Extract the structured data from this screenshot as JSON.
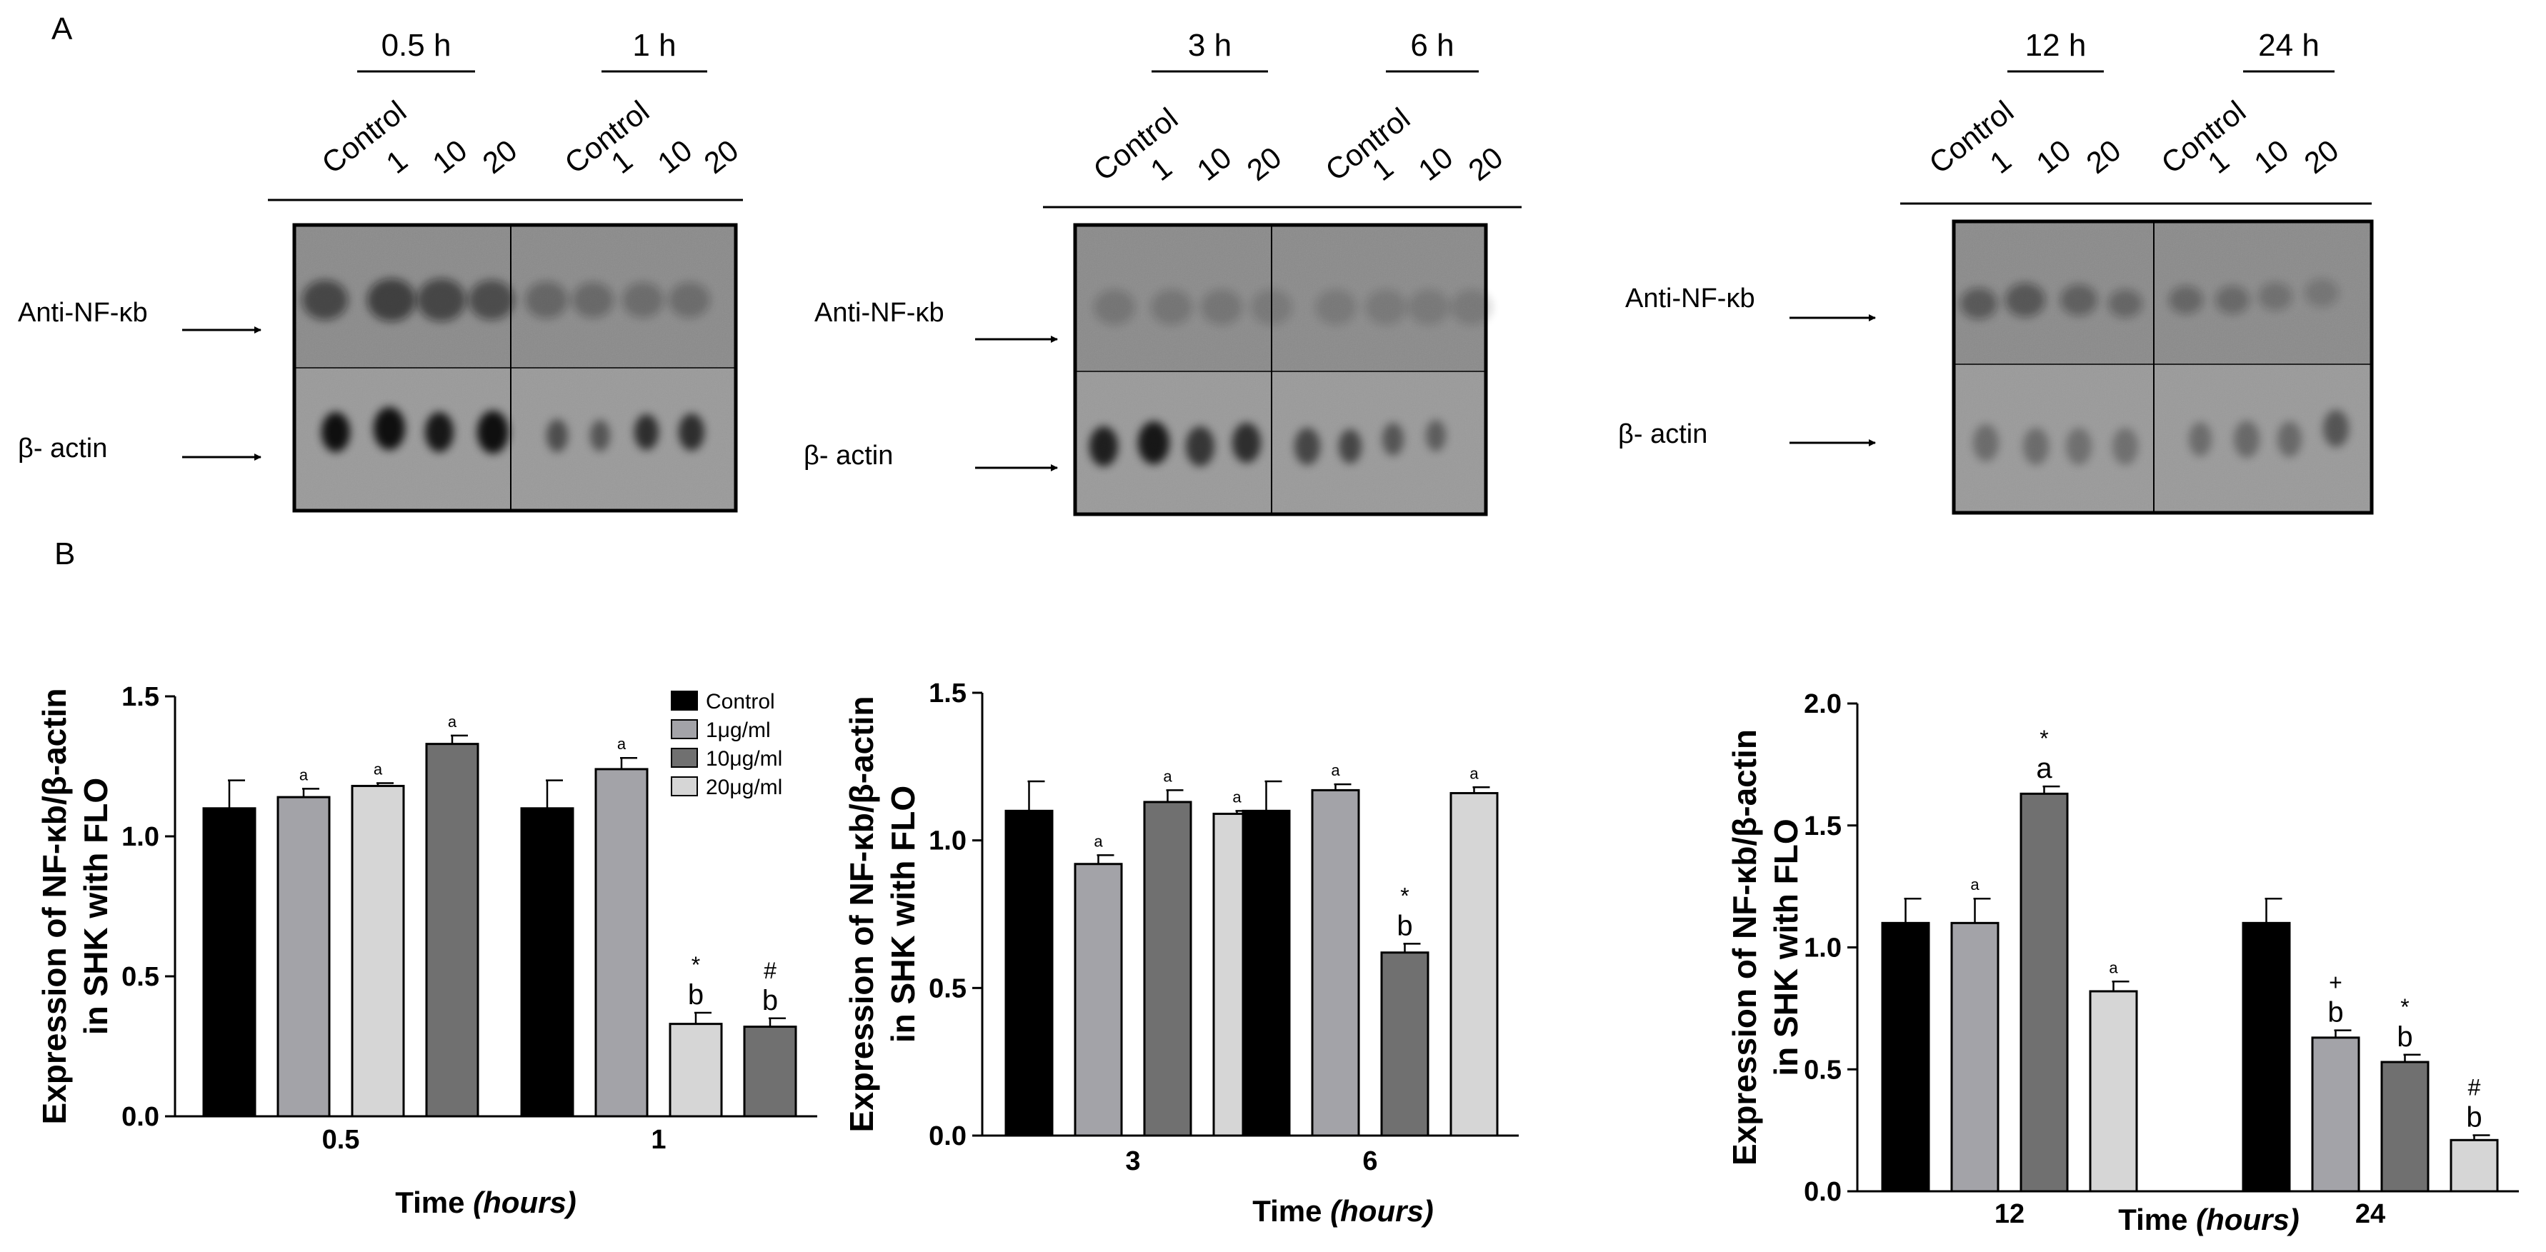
{
  "panel_a": {
    "label": "A",
    "row_labels": {
      "nfkb": "Anti-NF-κb",
      "actin": "β- actin"
    },
    "blots": [
      {
        "time_labels": [
          "0.5 h",
          "1 h"
        ],
        "lanes": [
          "Control",
          "1",
          "10",
          "20",
          "Control",
          "1",
          "10",
          "20"
        ]
      },
      {
        "time_labels": [
          "3 h",
          "6 h"
        ],
        "lanes": [
          "Control",
          "1",
          "10",
          "20",
          "Control",
          "1",
          "10",
          "20"
        ]
      },
      {
        "time_labels": [
          "12 h",
          "24 h"
        ],
        "lanes": [
          "Control",
          "1",
          "10",
          "20",
          "Control",
          "1",
          "10",
          "20"
        ]
      }
    ]
  },
  "panel_b": {
    "label": "B"
  },
  "colors": {
    "control": "#000000",
    "c1": "#a3a3a8",
    "c10": "#707070",
    "c20": "#d6d6d6"
  },
  "chart_data": [
    {
      "type": "bar",
      "title": "",
      "xlabel_main": "Time",
      "xlabel_unit": "(hours)",
      "ylabel_line1": "Expression of NF-κb/β-actin",
      "ylabel_line2": "in SHK with FLO",
      "ylim": [
        0,
        1.5
      ],
      "yticks": [
        "0.0",
        "0.5",
        "1.0",
        "1.5"
      ],
      "ytick_values": [
        0,
        0.5,
        1.0,
        1.5
      ],
      "categories": [
        "0.5",
        "1"
      ],
      "legend": [
        "Control",
        "1μg/ml",
        "10μg/ml",
        "20μg/ml"
      ],
      "series": [
        {
          "name": "Control",
          "values": [
            1.1,
            1.1
          ],
          "errors": [
            0.1,
            0.1
          ],
          "marks": [
            [
              "",
              ""
            ],
            [
              "",
              ""
            ]
          ]
        },
        {
          "name": "1μg/ml",
          "values": [
            1.14,
            1.24
          ],
          "errors": [
            0.03,
            0.04
          ],
          "marks": [
            [
              "a",
              ""
            ],
            [
              "a",
              ""
            ]
          ]
        },
        {
          "name": "20μg/ml",
          "values": [
            1.18,
            0.33
          ],
          "errors": [
            0.01,
            0.04
          ],
          "marks": [
            [
              "a",
              ""
            ],
            [
              "b",
              "*"
            ]
          ]
        },
        {
          "name": "10μg/ml",
          "values": [
            1.33,
            0.32
          ],
          "errors": [
            0.03,
            0.03
          ],
          "marks": [
            [
              "a",
              ""
            ],
            [
              "b",
              "#"
            ]
          ]
        }
      ]
    },
    {
      "type": "bar",
      "title": "",
      "xlabel_main": "Time",
      "xlabel_unit": "(hours)",
      "ylabel_line1": "Expression of NF-κb/β-actin",
      "ylabel_line2": "in SHK with FLO",
      "ylim": [
        0,
        1.5
      ],
      "yticks": [
        "0.0",
        "0.5",
        "1.0",
        "1.5"
      ],
      "ytick_values": [
        0,
        0.5,
        1.0,
        1.5
      ],
      "categories": [
        "3",
        "6"
      ],
      "series": [
        {
          "name": "Control",
          "values": [
            1.1,
            1.1
          ],
          "errors": [
            0.1,
            0.1
          ],
          "marks": [
            [
              "",
              ""
            ],
            [
              "",
              ""
            ]
          ]
        },
        {
          "name": "1μg/ml",
          "values": [
            0.92,
            1.17
          ],
          "errors": [
            0.03,
            0.02
          ],
          "marks": [
            [
              "a",
              ""
            ],
            [
              "a",
              ""
            ]
          ]
        },
        {
          "name": "10μg/ml",
          "values": [
            1.13,
            0.62
          ],
          "errors": [
            0.04,
            0.03
          ],
          "marks": [
            [
              "a",
              ""
            ],
            [
              "b",
              "*"
            ]
          ]
        },
        {
          "name": "20μg/ml",
          "values": [
            1.09,
            1.16
          ],
          "errors": [
            0.01,
            0.02
          ],
          "marks": [
            [
              "a",
              ""
            ],
            [
              "a",
              ""
            ]
          ]
        }
      ]
    },
    {
      "type": "bar",
      "title": "",
      "xlabel_main": "Time",
      "xlabel_unit": "(hours)",
      "ylabel_line1": "Expression of NF-κb/β-actin",
      "ylabel_line2": "in SHK with FLO",
      "ylim": [
        0,
        2.0
      ],
      "yticks": [
        "0.0",
        "0.5",
        "1.0",
        "1.5",
        "2.0"
      ],
      "ytick_values": [
        0,
        0.5,
        1.0,
        1.5,
        2.0
      ],
      "categories": [
        "12",
        "24"
      ],
      "series": [
        {
          "name": "Control",
          "values": [
            1.1,
            1.1
          ],
          "errors": [
            0.1,
            0.1
          ],
          "marks": [
            [
              "",
              ""
            ],
            [
              "",
              ""
            ]
          ]
        },
        {
          "name": "1μg/ml",
          "values": [
            1.1,
            0.63
          ],
          "errors": [
            0.1,
            0.03
          ],
          "marks": [
            [
              "a",
              ""
            ],
            [
              "b",
              "+"
            ]
          ]
        },
        {
          "name": "10μg/ml",
          "values": [
            1.63,
            0.53
          ],
          "errors": [
            0.03,
            0.03
          ],
          "marks": [
            [
              "a",
              "*"
            ],
            [
              "b",
              "*"
            ]
          ]
        },
        {
          "name": "20μg/ml",
          "values": [
            0.82,
            0.21
          ],
          "errors": [
            0.04,
            0.02
          ],
          "marks": [
            [
              "a",
              ""
            ],
            [
              "b",
              "#"
            ]
          ]
        }
      ]
    }
  ]
}
